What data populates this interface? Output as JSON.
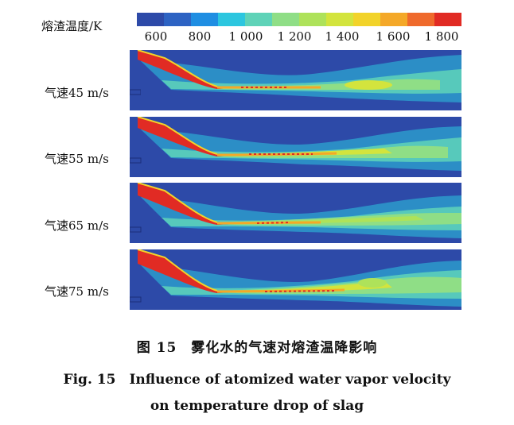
{
  "colorbar": {
    "title": "熔渣温度/K",
    "ticks": [
      "600",
      "800",
      "1 000",
      "1 200",
      "1 400",
      "1 600",
      "1 800"
    ],
    "colors": [
      "#2d4aa8",
      "#2d63c3",
      "#1f8ee2",
      "#2cc6df",
      "#5fd3b8",
      "#8fde86",
      "#aee25a",
      "#d3e43d",
      "#f2d32a",
      "#f4a828",
      "#ef6a2c",
      "#e12b24"
    ]
  },
  "panels": [
    {
      "label": "气速45 m/s"
    },
    {
      "label": "气速55 m/s"
    },
    {
      "label": "气速65 m/s"
    },
    {
      "label": "气速75 m/s"
    }
  ],
  "caption": {
    "cn": "图 15　雾化水的气速对熔渣温降影响",
    "en_line1": "Fig. 15　Influence of atomized water vapor velocity",
    "en_line2": "on temperature drop of slag"
  }
}
